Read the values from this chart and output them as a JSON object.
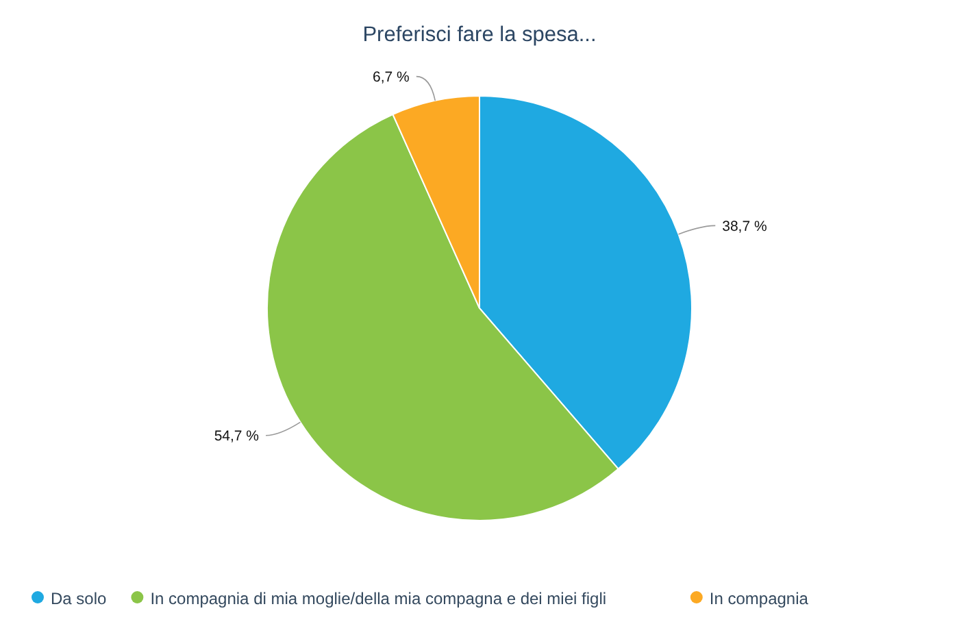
{
  "chart_data": {
    "type": "pie",
    "title": "Preferisci fare la spesa...",
    "categories": [
      "Da solo",
      "In compagnia di mia moglie/della mia compagna e dei miei figli",
      "In compagnia"
    ],
    "values": [
      38.7,
      54.7,
      6.7
    ],
    "colors": [
      "#1fa9e1",
      "#8bc548",
      "#fca923"
    ],
    "value_labels": [
      "38,7 %",
      "54,7 %",
      "6,7 %"
    ],
    "legend": "bottom"
  }
}
